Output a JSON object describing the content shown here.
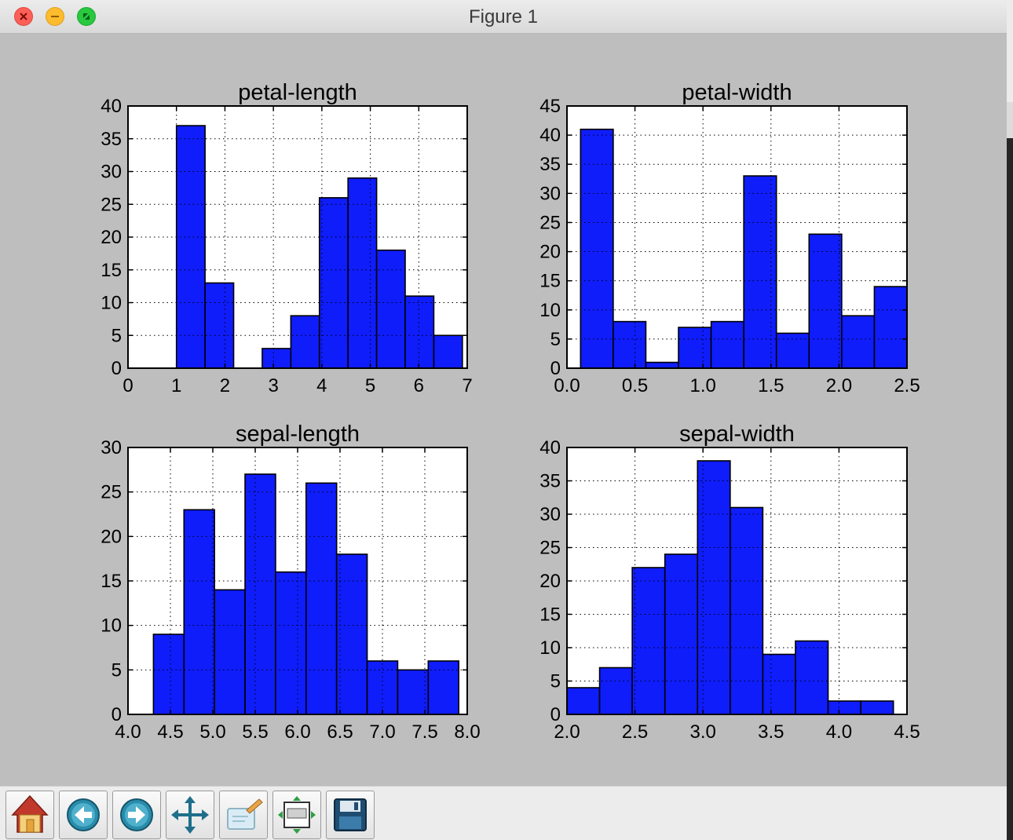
{
  "window": {
    "title": "Figure 1"
  },
  "toolbar": {
    "buttons": [
      {
        "name": "home-button",
        "icon": "home-icon"
      },
      {
        "name": "back-button",
        "icon": "back-arrow-icon"
      },
      {
        "name": "forward-button",
        "icon": "forward-arrow-icon"
      },
      {
        "name": "pan-button",
        "icon": "move-arrows-icon"
      },
      {
        "name": "zoom-button",
        "icon": "zoom-rect-icon"
      },
      {
        "name": "configure-subplots-button",
        "icon": "subplots-icon"
      },
      {
        "name": "save-button",
        "icon": "floppy-disk-icon"
      }
    ]
  },
  "colors": {
    "bar_fill": "#0f1dfb",
    "figure_bg": "#bebebe"
  },
  "chart_data": [
    {
      "type": "bar",
      "title": "petal-length",
      "bin_edges": [
        1.0,
        1.59,
        2.18,
        2.77,
        3.36,
        3.95,
        4.54,
        5.13,
        5.72,
        6.31,
        6.9
      ],
      "values": [
        37,
        13,
        0,
        3,
        8,
        26,
        29,
        18,
        11,
        5
      ],
      "xlim": [
        0,
        7
      ],
      "ylim": [
        0,
        40
      ],
      "xticks": [
        "0",
        "1",
        "2",
        "3",
        "4",
        "5",
        "6",
        "7"
      ],
      "xtick_values": [
        0,
        1,
        2,
        3,
        4,
        5,
        6,
        7
      ],
      "yticks": [
        "0",
        "5",
        "10",
        "15",
        "20",
        "25",
        "30",
        "35",
        "40"
      ],
      "ytick_values": [
        0,
        5,
        10,
        15,
        20,
        25,
        30,
        35,
        40
      ],
      "grid": true
    },
    {
      "type": "bar",
      "title": "petal-width",
      "bin_edges": [
        0.1,
        0.34,
        0.58,
        0.82,
        1.06,
        1.3,
        1.54,
        1.78,
        2.02,
        2.26,
        2.5
      ],
      "values": [
        41,
        8,
        1,
        7,
        8,
        33,
        6,
        23,
        9,
        14
      ],
      "xlim": [
        0.0,
        2.5
      ],
      "ylim": [
        0,
        45
      ],
      "xticks": [
        "0.0",
        "0.5",
        "1.0",
        "1.5",
        "2.0",
        "2.5"
      ],
      "xtick_values": [
        0.0,
        0.5,
        1.0,
        1.5,
        2.0,
        2.5
      ],
      "yticks": [
        "0",
        "5",
        "10",
        "15",
        "20",
        "25",
        "30",
        "35",
        "40",
        "45"
      ],
      "ytick_values": [
        0,
        5,
        10,
        15,
        20,
        25,
        30,
        35,
        40,
        45
      ],
      "grid": true
    },
    {
      "type": "bar",
      "title": "sepal-length",
      "bin_edges": [
        4.3,
        4.66,
        5.02,
        5.38,
        5.74,
        6.1,
        6.46,
        6.82,
        7.18,
        7.54,
        7.9
      ],
      "values": [
        9,
        23,
        14,
        27,
        16,
        26,
        18,
        6,
        5,
        6
      ],
      "xlim": [
        4.0,
        8.0
      ],
      "ylim": [
        0,
        30
      ],
      "xticks": [
        "4.0",
        "4.5",
        "5.0",
        "5.5",
        "6.0",
        "6.5",
        "7.0",
        "7.5",
        "8.0"
      ],
      "xtick_values": [
        4.0,
        4.5,
        5.0,
        5.5,
        6.0,
        6.5,
        7.0,
        7.5,
        8.0
      ],
      "yticks": [
        "0",
        "5",
        "10",
        "15",
        "20",
        "25",
        "30"
      ],
      "ytick_values": [
        0,
        5,
        10,
        15,
        20,
        25,
        30
      ],
      "grid": true
    },
    {
      "type": "bar",
      "title": "sepal-width",
      "bin_edges": [
        2.0,
        2.24,
        2.48,
        2.72,
        2.96,
        3.2,
        3.44,
        3.68,
        3.92,
        4.16,
        4.4
      ],
      "values": [
        4,
        7,
        22,
        24,
        38,
        31,
        9,
        11,
        2,
        2
      ],
      "xlim": [
        2.0,
        4.5
      ],
      "ylim": [
        0,
        40
      ],
      "xticks": [
        "2.0",
        "2.5",
        "3.0",
        "3.5",
        "4.0",
        "4.5"
      ],
      "xtick_values": [
        2.0,
        2.5,
        3.0,
        3.5,
        4.0,
        4.5
      ],
      "yticks": [
        "0",
        "5",
        "10",
        "15",
        "20",
        "25",
        "30",
        "35",
        "40"
      ],
      "ytick_values": [
        0,
        5,
        10,
        15,
        20,
        25,
        30,
        35,
        40
      ],
      "grid": true
    }
  ]
}
